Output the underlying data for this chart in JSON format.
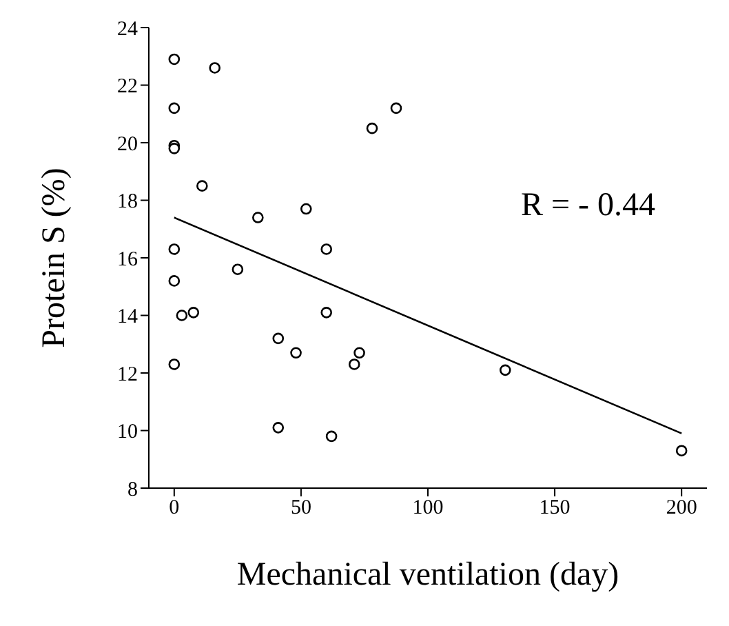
{
  "chart_data": {
    "type": "scatter",
    "xlabel": "Mechanical ventilation (day)",
    "ylabel": "Protein S (%)",
    "xlim": [
      -10,
      210
    ],
    "xticks": [
      0,
      50,
      100,
      150,
      200
    ],
    "ylim": [
      8,
      24
    ],
    "yticks": [
      8,
      10,
      12,
      14,
      16,
      18,
      20,
      22,
      24
    ],
    "grid": false,
    "legend": false,
    "marker": "circle",
    "annotations": [
      "R = - 0.44"
    ],
    "series": [
      {
        "type": "scatter",
        "color": "#000000",
        "x": [
          0,
          16,
          0,
          0,
          0,
          11,
          33,
          52,
          60,
          0,
          0,
          25,
          3,
          7.6,
          60,
          41,
          48,
          73,
          71,
          0,
          41,
          62,
          78,
          87.5,
          130.5,
          200
        ],
        "values": [
          22.9,
          22.6,
          21.2,
          19.9,
          19.8,
          18.5,
          17.4,
          17.7,
          16.3,
          16.3,
          15.2,
          15.6,
          14.0,
          14.1,
          14.1,
          13.2,
          12.7,
          12.7,
          12.3,
          12.3,
          10.1,
          9.8,
          20.5,
          21.2,
          12.1,
          9.3
        ]
      },
      {
        "type": "line",
        "color": "#000000",
        "marker": "none",
        "line_style": "solid",
        "x": [
          0,
          200
        ],
        "values": [
          17.4,
          9.9
        ]
      }
    ]
  }
}
